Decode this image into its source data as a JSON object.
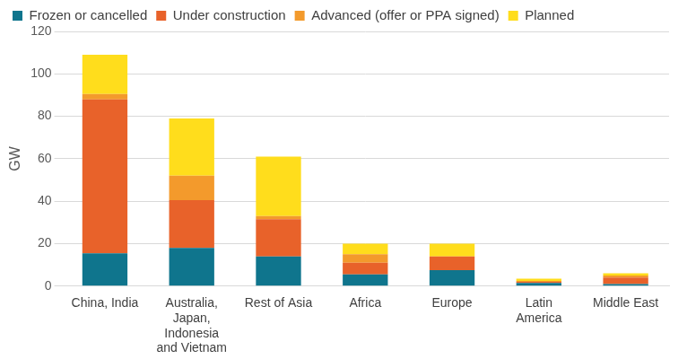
{
  "chart_data": {
    "type": "bar",
    "stacked": true,
    "grid": true,
    "legend": "top",
    "y_label": "GW",
    "categories": [
      "China, India",
      "Australia, Japan, Indonesia and Vietnam",
      "Rest of Asia",
      "Africa",
      "Europe",
      "Latin America",
      "Middle East"
    ],
    "series": [
      {
        "name": "Frozen or cancelled",
        "color": "#0f758d",
        "values": [
          15.5,
          18,
          14,
          5.5,
          7.5,
          1.5,
          1
        ]
      },
      {
        "name": "Under construction",
        "color": "#e8622a",
        "values": [
          72.5,
          22.5,
          17.5,
          5.5,
          6.5,
          0.5,
          3
        ]
      },
      {
        "name": "Advanced (offer or PPA signed)",
        "color": "#f39a2c",
        "values": [
          2.5,
          11.5,
          1.5,
          4,
          0,
          0.5,
          1
        ]
      },
      {
        "name": "Planned",
        "color": "#ffdd1c",
        "values": [
          18.5,
          27,
          28,
          5,
          6,
          1,
          1
        ]
      }
    ],
    "ylim": [
      0,
      120
    ],
    "yticks": [
      0,
      20,
      40,
      60,
      80,
      100,
      120
    ]
  }
}
